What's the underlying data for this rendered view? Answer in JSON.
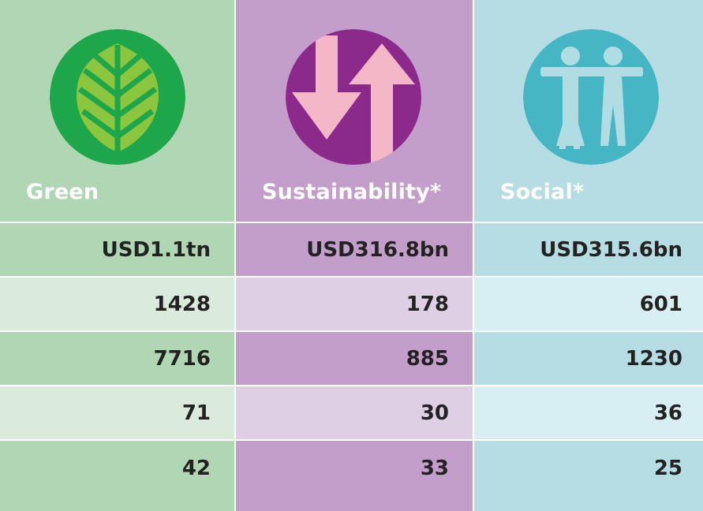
{
  "colors": {
    "green_dark": "#b0d6b3",
    "green_light": "#daeadb",
    "green_circle": "#1ea64a",
    "green_leaf": "#8cc63f",
    "purple_dark": "#c49ecb",
    "purple_light": "#dfcfe5",
    "purple_circle": "#8c2a8c",
    "purple_arrow": "#f4b7c7",
    "blue_dark": "#b5dde3",
    "blue_light": "#d7eef2",
    "blue_circle": "#46b5c4",
    "blue_figure": "#b0dde3"
  },
  "icons": [
    "leaf-icon",
    "arrows-up-down-icon",
    "people-icon"
  ],
  "chart_data": {
    "type": "table",
    "columns": [
      "Green",
      "Sustainability*",
      "Social*"
    ],
    "rows": [
      [
        "USD1.1tn",
        "USD316.8bn",
        "USD315.6bn"
      ],
      [
        "1428",
        "178",
        "601"
      ],
      [
        "7716",
        "885",
        "1230"
      ],
      [
        "71",
        "30",
        "36"
      ],
      [
        "42",
        "33",
        "25"
      ]
    ]
  }
}
